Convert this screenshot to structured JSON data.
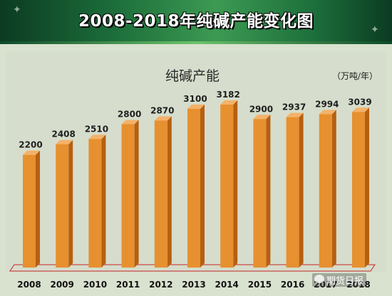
{
  "banner": {
    "title": "2008-2018年纯碱产能变化图"
  },
  "chart_data": {
    "type": "bar",
    "title": "纯碱产能",
    "unit": "（万吨/年）",
    "categories": [
      "2008",
      "2009",
      "2010",
      "2011",
      "2012",
      "2013",
      "2014",
      "2015",
      "2016",
      "2017",
      "2018"
    ],
    "values": [
      2200,
      2408,
      2510,
      2800,
      2870,
      3100,
      3182,
      2900,
      2937,
      2994,
      3039
    ],
    "value_labels": [
      "2200",
      "2408",
      "2510",
      "2800",
      "2870",
      "3100",
      "3182",
      "2900",
      "2937",
      "2994",
      "3039"
    ],
    "ylim": [
      0,
      3400
    ],
    "grid": false,
    "legend": "none",
    "colors": {
      "bar": "#e7902f",
      "bar_side": "#b65f12",
      "bar_top": "#f3b26a",
      "floor": "#c62828"
    }
  },
  "watermark": {
    "text": "期货日报"
  }
}
